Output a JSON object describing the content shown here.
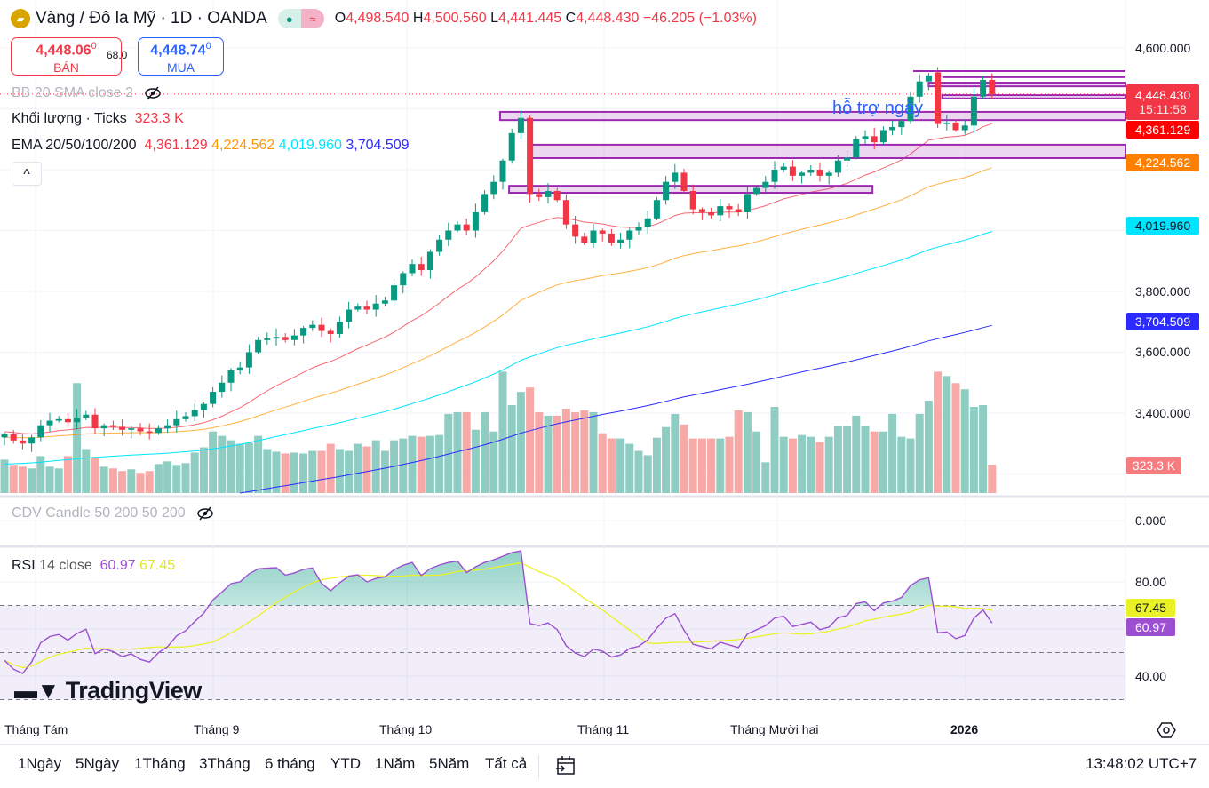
{
  "header": {
    "symbol": "Vàng / Đô la Mỹ · 1D · OANDA",
    "ohlc": {
      "o_label": "O",
      "o": "4,498.540",
      "h_label": "H",
      "h": "4,500.560",
      "l_label": "L",
      "l": "4,441.445",
      "c_label": "C",
      "c": "4,448.430",
      "change": "−46.205 (−1.03%)"
    },
    "sell": {
      "price": "4,448.06",
      "price_sup": "0",
      "label": "BÁN"
    },
    "spread": "68.0",
    "buy": {
      "price": "4,448.74",
      "price_sup": "0",
      "label": "MUA"
    }
  },
  "legends": {
    "bb": "BB 20 SMA close 2",
    "volume_label": "Khối lượng · Ticks",
    "volume_value": "323.3 K",
    "ema_label": "EMA 20/50/100/200",
    "ema_values": [
      "4,361.129",
      "4,224.562",
      "4,019.960",
      "3,704.509"
    ],
    "cdv": "CDV Candle 50 200 50 200",
    "rsi_label": "RSI",
    "rsi_params": "14 close",
    "rsi_value": "60.97",
    "rsi_ma_value": "67.45",
    "collapse": "^"
  },
  "price_axis": [
    "4,600.000",
    "3,800.000",
    "3,600.000",
    "3,400.000",
    "0.000",
    "80.00",
    "40.00"
  ],
  "price_tags": {
    "last_price": "4,448.430",
    "countdown": "15:11:58",
    "ema20": "4,361.129",
    "ema50": "4,224.562",
    "ema100": "4,019.960",
    "ema200": "3,704.509",
    "volume": "323.3 K",
    "rsi_ma": "67.45",
    "rsi": "60.97"
  },
  "annotation": "hỗ trợ ngày",
  "time_axis": [
    "Tháng Tám",
    "Tháng 9",
    "Tháng 10",
    "Tháng 11",
    "Tháng Mười hai",
    "2026"
  ],
  "toolbar": {
    "ranges": [
      "1Ngày",
      "5Ngày",
      "1Tháng",
      "3Tháng",
      "6 tháng",
      "YTD",
      "1Năm",
      "5Năm",
      "Tất cả"
    ],
    "clock": "13:48:02 UTC+7"
  },
  "watermark": "TradingView",
  "colors": {
    "up": "#089981",
    "down": "#f23645",
    "ema20": "#f23645",
    "ema50": "#ff9800",
    "ema100": "#00e5ff",
    "ema200": "#2b2bff",
    "rsi": "#9c4fd0",
    "rsi_ma": "#eaf227",
    "zone": "#9c27b0"
  },
  "chart_data": {
    "type": "candlestick",
    "title": "Vàng / Đô la Mỹ · 1D · OANDA",
    "ylim": [
      3150,
      4650
    ],
    "rsi_ylim": [
      25,
      92
    ],
    "closes": [
      3330,
      3310,
      3300,
      3320,
      3360,
      3375,
      3380,
      3370,
      3385,
      3395,
      3350,
      3360,
      3355,
      3345,
      3350,
      3340,
      3335,
      3350,
      3360,
      3380,
      3390,
      3410,
      3430,
      3470,
      3500,
      3540,
      3550,
      3600,
      3640,
      3645,
      3650,
      3640,
      3655,
      3680,
      3690,
      3670,
      3660,
      3700,
      3740,
      3750,
      3740,
      3760,
      3770,
      3820,
      3860,
      3890,
      3870,
      3930,
      3970,
      4000,
      4020,
      4000,
      4060,
      4120,
      4160,
      4230,
      4320,
      4370,
      4120,
      4110,
      4130,
      4100,
      4020,
      3980,
      3960,
      4000,
      3990,
      3960,
      3970,
      4000,
      4010,
      4040,
      4100,
      4160,
      4190,
      4130,
      4070,
      4060,
      4050,
      4080,
      4070,
      4060,
      4120,
      4140,
      4160,
      4200,
      4210,
      4180,
      4190,
      4200,
      4180,
      4190,
      4230,
      4240,
      4300,
      4310,
      4290,
      4330,
      4340,
      4360,
      4440,
      4490,
      4510,
      4350,
      4355,
      4330,
      4345,
      4440,
      4495,
      4448.43
    ],
    "first_open": 3320,
    "volumes_k": [
      380,
      320,
      300,
      280,
      420,
      300,
      280,
      420,
      1250,
      500,
      410,
      300,
      280,
      250,
      270,
      230,
      250,
      330,
      360,
      320,
      340,
      460,
      520,
      700,
      650,
      600,
      560,
      570,
      650,
      500,
      470,
      450,
      460,
      450,
      480,
      480,
      560,
      500,
      480,
      560,
      530,
      600,
      480,
      600,
      620,
      650,
      640,
      650,
      660,
      900,
      920,
      920,
      720,
      920,
      700,
      1380,
      1000,
      1150,
      1200,
      920,
      880,
      880,
      960,
      920,
      940,
      920,
      680,
      620,
      620,
      560,
      480,
      430,
      630,
      750,
      900,
      780,
      620,
      620,
      620,
      620,
      640,
      940,
      920,
      700,
      350,
      980,
      640,
      620,
      660,
      640,
      580,
      640,
      760,
      760,
      880,
      760,
      700,
      700,
      900,
      640,
      620,
      900,
      1050,
      1380,
      1330,
      1250,
      1180,
      980,
      1000,
      323.3
    ],
    "ema_seeds": {
      "ema20": 3340,
      "ema50": 3320,
      "ema100": 3230,
      "ema200": 3060
    },
    "ema_periods": [
      20,
      50,
      100,
      200
    ],
    "rsi_period": 14,
    "rsi_seed": {
      "avg_gain": 8,
      "avg_loss": 10
    },
    "rsi_levels": [
      70,
      50,
      30
    ],
    "zones": [
      {
        "from_bar": 54.7,
        "to_bar": null,
        "top": 4390,
        "bottom": 4363
      },
      {
        "from_bar": 58,
        "to_bar": null,
        "top": 4282,
        "bottom": 4238
      },
      {
        "from_bar": 55.7,
        "to_bar": 95.8,
        "top": 4147,
        "bottom": 4124
      },
      {
        "from_bar": 100.3,
        "to_bar": null,
        "top": 4524,
        "bottom": 4524
      },
      {
        "from_bar": 103.5,
        "to_bar": null,
        "top": 4504,
        "bottom": 4504
      },
      {
        "from_bar": 102,
        "to_bar": null,
        "top": 4486,
        "bottom": 4474
      },
      {
        "from_bar": 103.5,
        "to_bar": null,
        "top": 4445,
        "bottom": 4434
      }
    ]
  }
}
